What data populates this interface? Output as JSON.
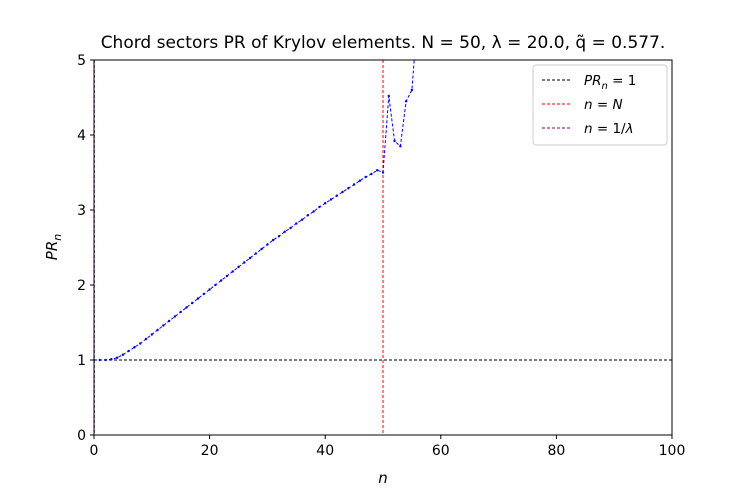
{
  "chart_data": {
    "type": "line",
    "title": "Chord sectors PR of Krylov elements. N = 50, λ = 20.0, q̃ = 0.577.",
    "xlabel": "n",
    "ylabel": "PR_n",
    "xlim": [
      0,
      100
    ],
    "ylim": [
      0,
      5
    ],
    "xticks": [
      0,
      20,
      40,
      60,
      80,
      100
    ],
    "yticks": [
      0,
      1,
      2,
      3,
      4,
      5
    ],
    "grid": false,
    "legend_position": "top-right",
    "legend": [
      {
        "label": "PR_n = 1",
        "color": "#000000",
        "style": "dashed"
      },
      {
        "label": "n = N",
        "color": "#ff0000",
        "style": "dashed"
      },
      {
        "label": "n = 1/λ",
        "color": "#800080",
        "style": "dashed"
      }
    ],
    "hline": {
      "y": 1,
      "color": "#000000"
    },
    "vlines": [
      {
        "x": 50,
        "color": "#ff0000"
      },
      {
        "x": 0.05,
        "color": "#800080"
      }
    ],
    "series": [
      {
        "color": "#0000ff",
        "x": [
          0,
          1,
          2,
          3,
          4,
          5,
          6,
          7,
          8,
          9,
          10,
          11,
          12,
          13,
          14,
          15,
          16,
          17,
          18,
          19,
          20,
          21,
          22,
          23,
          24,
          25,
          26,
          27,
          28,
          29,
          30,
          31,
          32,
          33,
          34,
          35,
          36,
          37,
          38,
          39,
          40,
          41,
          42,
          43,
          44,
          45,
          46,
          47,
          48,
          49,
          50,
          51,
          52,
          53,
          54,
          55,
          56
        ],
        "y": [
          1.0,
          1.0,
          1.0,
          1.01,
          1.03,
          1.07,
          1.12,
          1.17,
          1.22,
          1.28,
          1.34,
          1.4,
          1.46,
          1.52,
          1.58,
          1.64,
          1.7,
          1.76,
          1.82,
          1.88,
          1.94,
          2.0,
          2.06,
          2.12,
          2.18,
          2.24,
          2.3,
          2.36,
          2.42,
          2.48,
          2.54,
          2.6,
          2.65,
          2.71,
          2.76,
          2.82,
          2.87,
          2.93,
          2.98,
          3.04,
          3.09,
          3.14,
          3.19,
          3.24,
          3.29,
          3.34,
          3.39,
          3.44,
          3.48,
          3.53,
          3.5,
          4.52,
          3.92,
          3.85,
          4.45,
          4.6,
          5.6
        ]
      }
    ]
  }
}
